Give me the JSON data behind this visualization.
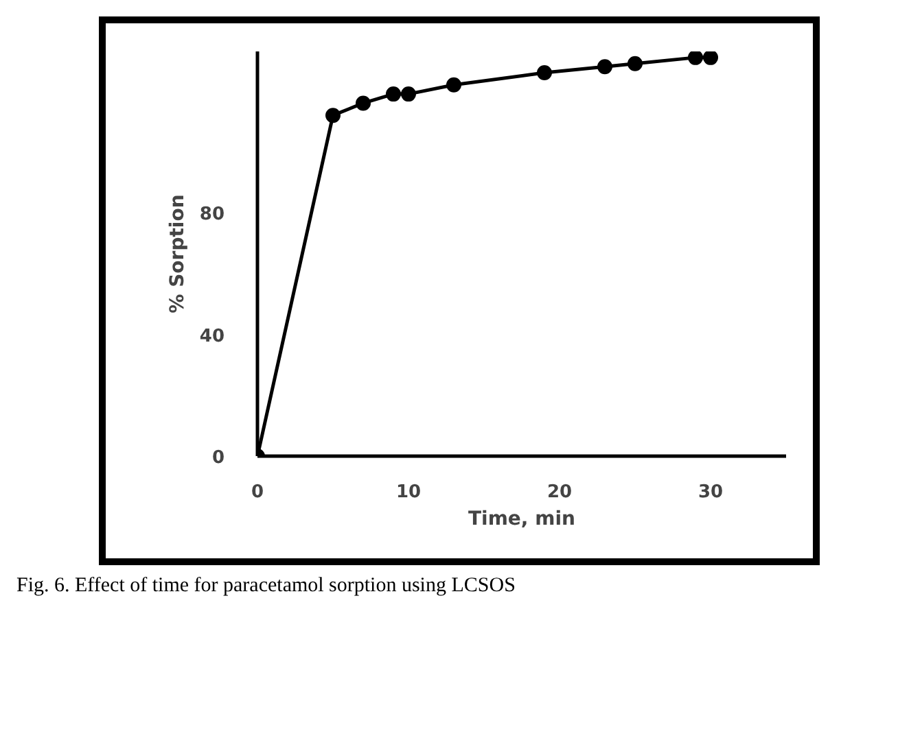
{
  "chart_data": {
    "type": "line",
    "xlabel": "Time, min",
    "ylabel": "% Sorption",
    "x": [
      0,
      5,
      7,
      9,
      10,
      13,
      19,
      23,
      25,
      29,
      30
    ],
    "series": [
      {
        "color": "#000000",
        "values": [
          0,
          112,
          116,
          119,
          119,
          122,
          126,
          128,
          129,
          131,
          131
        ]
      }
    ],
    "xlim": [
      0,
      35
    ],
    "ylim": [
      0,
      133
    ],
    "xticks": [
      0,
      10,
      20,
      30
    ],
    "yticks": [
      0,
      40,
      80
    ],
    "grid": false,
    "marker": "circle",
    "line_style": "solid",
    "annotations": [
      "Fig. 6. Effect of time for paracetamol sorption using LCSOS"
    ]
  }
}
